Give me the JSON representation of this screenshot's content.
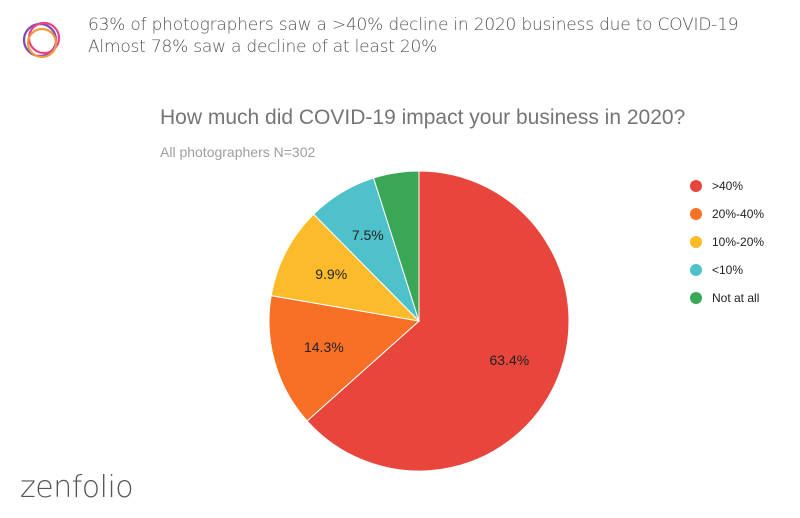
{
  "header": {
    "line1": "63% of photographers saw a >40% decline in 2020 business due to COVID-19",
    "line2": "Almost 78% saw a decline of at least 20%",
    "logo_icon": "overlapping-rings-logo-icon"
  },
  "brand": {
    "name": "zenfolio"
  },
  "chart_data": {
    "type": "pie",
    "title": "How much did COVID-19 impact your business in 2020?",
    "subtitle": "All photographers N=302",
    "categories": [
      ">40%",
      "20%-40%",
      "10%-20%",
      "<10%",
      "Not at all"
    ],
    "values": [
      63.4,
      14.3,
      9.9,
      7.5,
      4.9
    ],
    "labels": [
      "63.4%",
      "14.3%",
      "9.9%",
      "7.5%",
      ""
    ],
    "colors": [
      "#e8453c",
      "#f86f26",
      "#fbbb2a",
      "#4fc1cb",
      "#3aa757"
    ],
    "start_angle_deg": 0,
    "direction": "clockwise",
    "legend_position": "right"
  }
}
